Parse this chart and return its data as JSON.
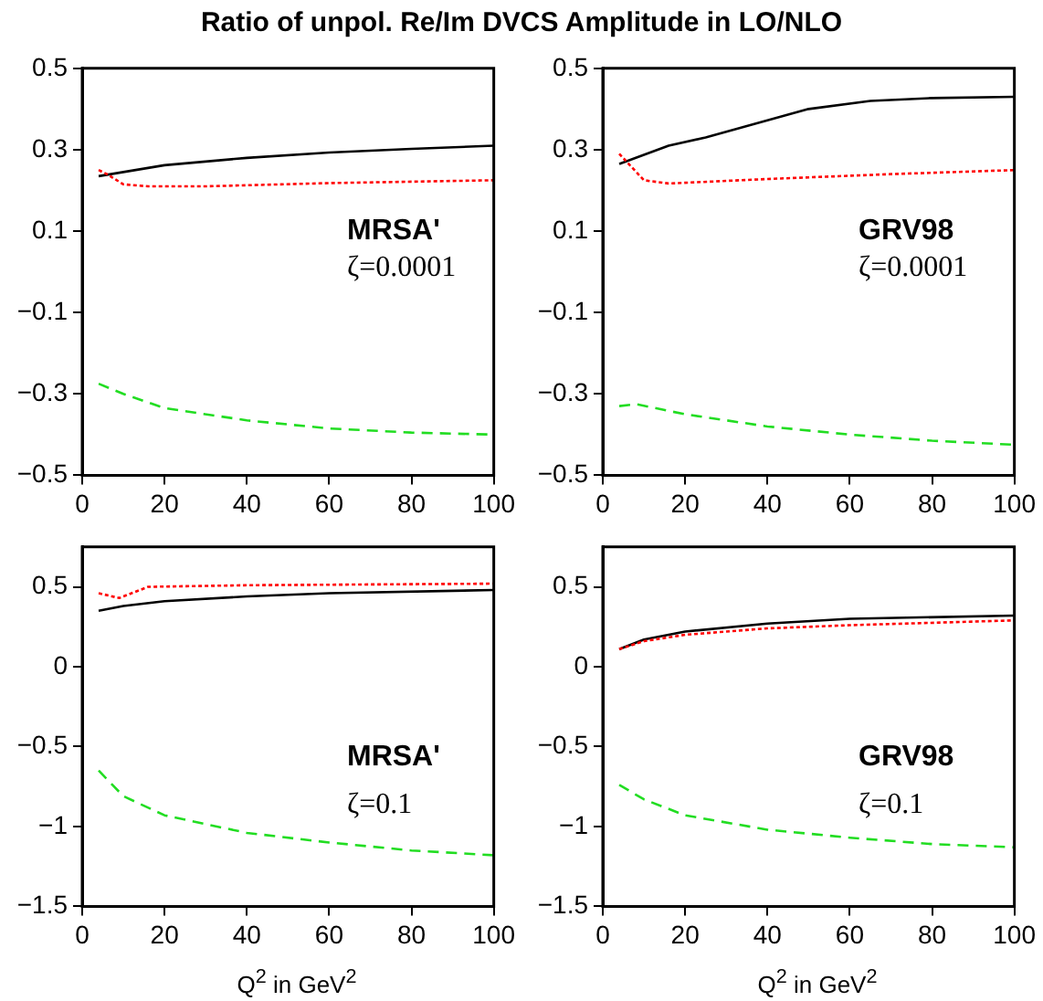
{
  "chart_data": [
    {
      "type": "line",
      "title": "Ratio of unpol. Re/Im DVCS Amplitude in LO/NLO",
      "xlim": [
        0,
        100
      ],
      "xticks": [
        0,
        20,
        40,
        60,
        80,
        100
      ],
      "ylim": [
        -0.5,
        0.5
      ],
      "yticks": [
        -0.5,
        -0.3,
        -0.1,
        0.1,
        0.3,
        0.5
      ],
      "grid": false,
      "legend": false,
      "marker": "none",
      "annotations": [
        "MRSA'",
        "ζ=0.0001"
      ],
      "series": [
        {
          "color": "#000000",
          "line_style": "solid",
          "x": [
            4,
            20,
            40,
            60,
            80,
            100
          ],
          "values": [
            0.235,
            0.262,
            0.28,
            0.293,
            0.302,
            0.31
          ]
        },
        {
          "color": "#ff0000",
          "line_style": "dotted",
          "x": [
            4,
            6,
            10,
            16,
            30,
            60,
            100
          ],
          "values": [
            0.25,
            0.24,
            0.215,
            0.21,
            0.21,
            0.218,
            0.225
          ]
        },
        {
          "color": "#22dd22",
          "line_style": "dashed",
          "x": [
            4,
            10,
            20,
            40,
            60,
            80,
            100
          ],
          "values": [
            -0.275,
            -0.3,
            -0.335,
            -0.365,
            -0.385,
            -0.395,
            -0.4
          ]
        }
      ]
    },
    {
      "type": "line",
      "xlim": [
        0,
        100
      ],
      "xticks": [
        0,
        20,
        40,
        60,
        80,
        100
      ],
      "ylim": [
        -0.5,
        0.5
      ],
      "yticks": [
        -0.5,
        -0.3,
        -0.1,
        0.1,
        0.3,
        0.5
      ],
      "grid": false,
      "legend": false,
      "marker": "none",
      "annotations": [
        "GRV98",
        "ζ=0.0001"
      ],
      "series": [
        {
          "color": "#000000",
          "line_style": "solid",
          "x": [
            4,
            16,
            25,
            50,
            65,
            80,
            100
          ],
          "values": [
            0.265,
            0.31,
            0.33,
            0.4,
            0.42,
            0.427,
            0.43
          ]
        },
        {
          "color": "#ff0000",
          "line_style": "dotted",
          "x": [
            4,
            10,
            16,
            40,
            70,
            100
          ],
          "values": [
            0.29,
            0.225,
            0.217,
            0.228,
            0.24,
            0.25
          ]
        },
        {
          "color": "#22dd22",
          "line_style": "dashed",
          "x": [
            4,
            8,
            20,
            40,
            60,
            80,
            100
          ],
          "values": [
            -0.33,
            -0.325,
            -0.35,
            -0.38,
            -0.4,
            -0.415,
            -0.425
          ]
        }
      ]
    },
    {
      "type": "line",
      "xlabel": "Q$^{2}$ in GeV$^{2}$",
      "xlim": [
        0,
        100
      ],
      "xticks": [
        0,
        20,
        40,
        60,
        80,
        100
      ],
      "ylim": [
        -1.5,
        0.75
      ],
      "yticks": [
        -1.5,
        -1,
        -0.5,
        0,
        0.5
      ],
      "grid": false,
      "legend": false,
      "marker": "none",
      "annotations": [
        "MRSA'",
        "ζ=0.1"
      ],
      "series": [
        {
          "color": "#000000",
          "line_style": "solid",
          "x": [
            4,
            10,
            20,
            40,
            60,
            100
          ],
          "values": [
            0.35,
            0.38,
            0.41,
            0.44,
            0.46,
            0.48
          ]
        },
        {
          "color": "#ff0000",
          "line_style": "dotted",
          "x": [
            4,
            9,
            16,
            40,
            100
          ],
          "values": [
            0.46,
            0.43,
            0.5,
            0.51,
            0.52
          ]
        },
        {
          "color": "#22dd22",
          "line_style": "dashed",
          "x": [
            4,
            10,
            20,
            40,
            60,
            80,
            100
          ],
          "values": [
            -0.65,
            -0.81,
            -0.93,
            -1.04,
            -1.1,
            -1.15,
            -1.18
          ]
        }
      ]
    },
    {
      "type": "line",
      "xlabel": "Q$^{2}$ in GeV$^{2}$",
      "xlim": [
        0,
        100
      ],
      "xticks": [
        0,
        20,
        40,
        60,
        80,
        100
      ],
      "ylim": [
        -1.5,
        0.75
      ],
      "yticks": [
        -1.5,
        -1,
        -0.5,
        0,
        0.5
      ],
      "grid": false,
      "legend": false,
      "marker": "none",
      "annotations": [
        "GRV98",
        "ζ=0.1"
      ],
      "series": [
        {
          "color": "#000000",
          "line_style": "solid",
          "x": [
            4,
            10,
            20,
            40,
            60,
            100
          ],
          "values": [
            0.11,
            0.17,
            0.22,
            0.27,
            0.3,
            0.32
          ]
        },
        {
          "color": "#ff0000",
          "line_style": "dotted",
          "x": [
            4,
            10,
            20,
            40,
            60,
            100
          ],
          "values": [
            0.11,
            0.16,
            0.2,
            0.24,
            0.26,
            0.29
          ]
        },
        {
          "color": "#22dd22",
          "line_style": "dashed",
          "x": [
            4,
            10,
            20,
            40,
            60,
            80,
            100
          ],
          "values": [
            -0.74,
            -0.83,
            -0.93,
            -1.02,
            -1.07,
            -1.11,
            -1.13
          ]
        }
      ]
    }
  ]
}
